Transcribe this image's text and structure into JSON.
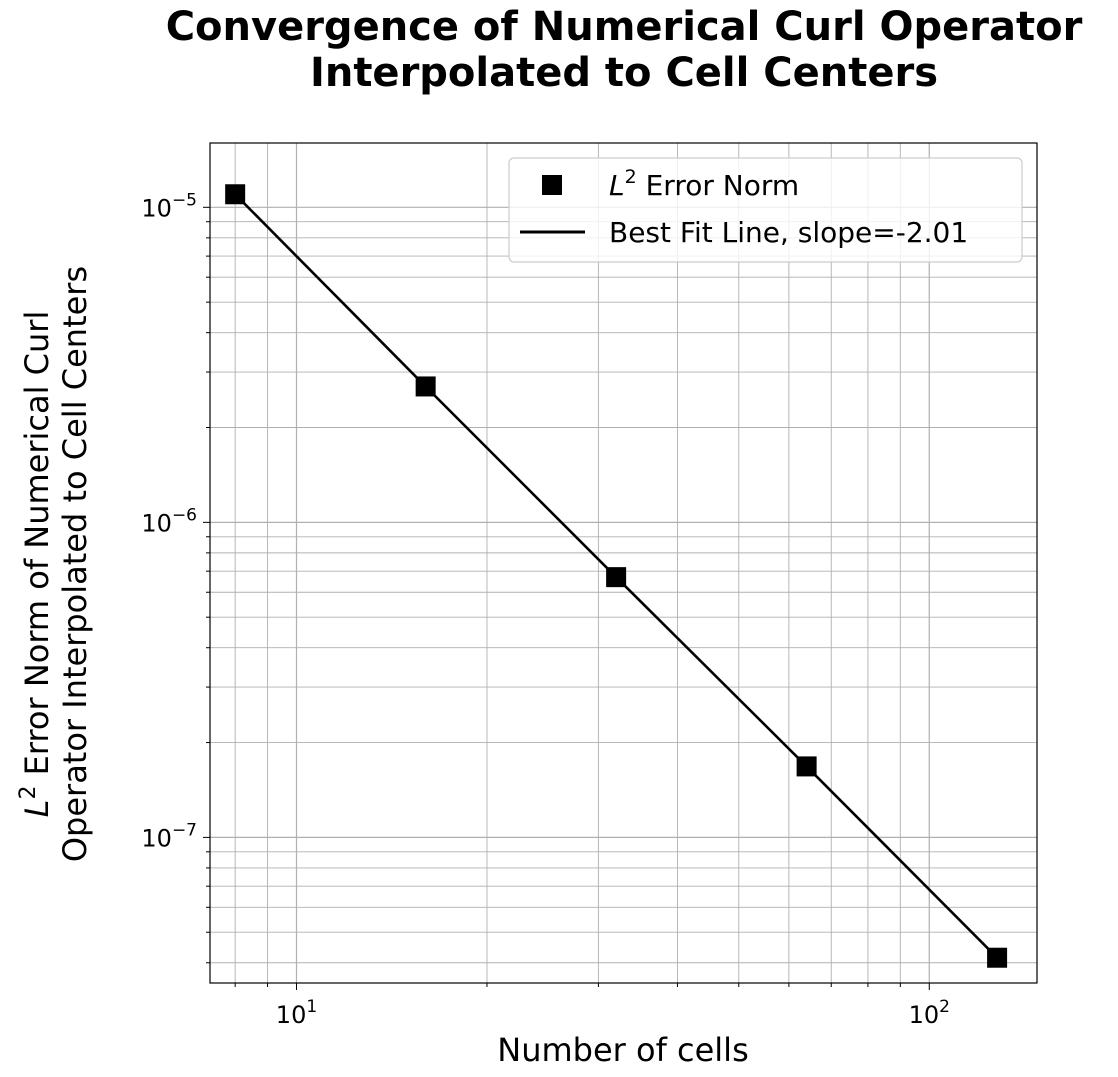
{
  "chart_data": {
    "type": "scatter",
    "title_line1": "Convergence of Numerical Curl Operator",
    "title_line2": "Interpolated to Cell Centers",
    "xlabel": "Number of cells",
    "ylabel_line1_rest": " Error Norm of Numerical Curl",
    "ylabel_line2": "Operator Interpolated to Cell Centers",
    "x_scale": "log",
    "y_scale": "log",
    "xlim": [
      7.3,
      148
    ],
    "ylim": [
      3.45e-08,
      1.6e-05
    ],
    "x_ticks": [
      {
        "value": 10,
        "base": "10",
        "exp": "1"
      },
      {
        "value": 100,
        "base": "10",
        "exp": "2"
      }
    ],
    "y_ticks": [
      {
        "value": 1e-05,
        "base": "10",
        "exp": "−5"
      },
      {
        "value": 1e-06,
        "base": "10",
        "exp": "−6"
      },
      {
        "value": 1e-07,
        "base": "10",
        "exp": "−7"
      }
    ],
    "grid": true,
    "grid_minor": true,
    "legend_position": "top-right",
    "series": [
      {
        "name": "L² Error Norm",
        "legend_rest": " Error Norm",
        "marker": "square",
        "color": "#000000",
        "x": [
          8,
          16,
          32,
          64,
          128
        ],
        "y": [
          1.1e-05,
          2.7e-06,
          6.7e-07,
          1.68e-07,
          4.15e-08
        ]
      },
      {
        "name": "Best Fit Line, slope=-2.01",
        "style": "line",
        "color": "#000000",
        "slope": -2.01,
        "x": [
          8,
          16,
          32,
          64,
          128
        ],
        "y": [
          1.1e-05,
          2.7e-06,
          6.7e-07,
          1.68e-07,
          4.15e-08
        ]
      }
    ]
  }
}
